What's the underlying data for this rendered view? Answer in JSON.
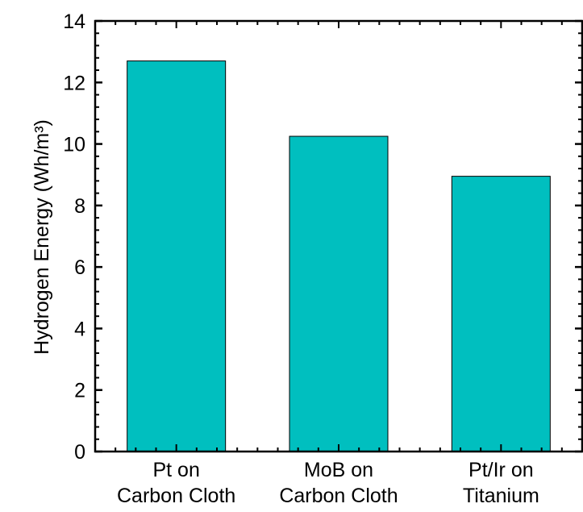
{
  "chart_data": {
    "type": "bar",
    "title": "",
    "xlabel": "",
    "ylabel": "Hydrogen Energy (Wh/m³)",
    "ylim": [
      0,
      14
    ],
    "yticks": [
      0,
      2,
      4,
      6,
      8,
      10,
      12,
      14
    ],
    "grid": false,
    "legend": "none",
    "categories": [
      [
        "Pt on",
        "Carbon Cloth"
      ],
      [
        "MoB on",
        "Carbon Cloth"
      ],
      [
        "Pt/Ir on",
        "Titanium"
      ]
    ],
    "values": [
      12.7,
      10.25,
      8.95
    ],
    "bar_color": "#00bfbf",
    "bar_edge_color": "#000000"
  }
}
